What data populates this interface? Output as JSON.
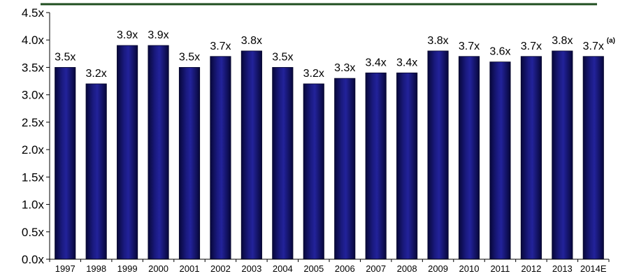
{
  "chart_data": {
    "type": "bar",
    "categories": [
      "1997",
      "1998",
      "1999",
      "2000",
      "2001",
      "2002",
      "2003",
      "2004",
      "2005",
      "2006",
      "2007",
      "2008",
      "2009",
      "2010",
      "2011",
      "2012",
      "2013",
      "2014E"
    ],
    "values": [
      3.5,
      3.2,
      3.9,
      3.9,
      3.5,
      3.7,
      3.8,
      3.5,
      3.2,
      3.3,
      3.4,
      3.4,
      3.8,
      3.7,
      3.6,
      3.7,
      3.8,
      3.7
    ],
    "data_labels": [
      "3.5x",
      "3.2x",
      "3.9x",
      "3.9x",
      "3.5x",
      "3.7x",
      "3.8x",
      "3.5x",
      "3.2x",
      "3.3x",
      "3.4x",
      "3.4x",
      "3.8x",
      "3.7x",
      "3.6x",
      "3.7x",
      "3.8x",
      "3.7x"
    ],
    "annotation_last": "(a)",
    "title": "",
    "xlabel": "",
    "ylabel": "",
    "ylim": [
      0,
      4.5
    ],
    "yticks": [
      "0.0x",
      "0.5x",
      "1.0x",
      "1.5x",
      "2.0x",
      "2.5x",
      "3.0x",
      "3.5x",
      "4.0x",
      "4.5x"
    ],
    "grid": false,
    "legend": "none",
    "colors": {
      "bar": "#1a1a80",
      "bar_dark": "#07073a",
      "header_rule": "#1f4e1f",
      "axis": "#000000"
    }
  }
}
